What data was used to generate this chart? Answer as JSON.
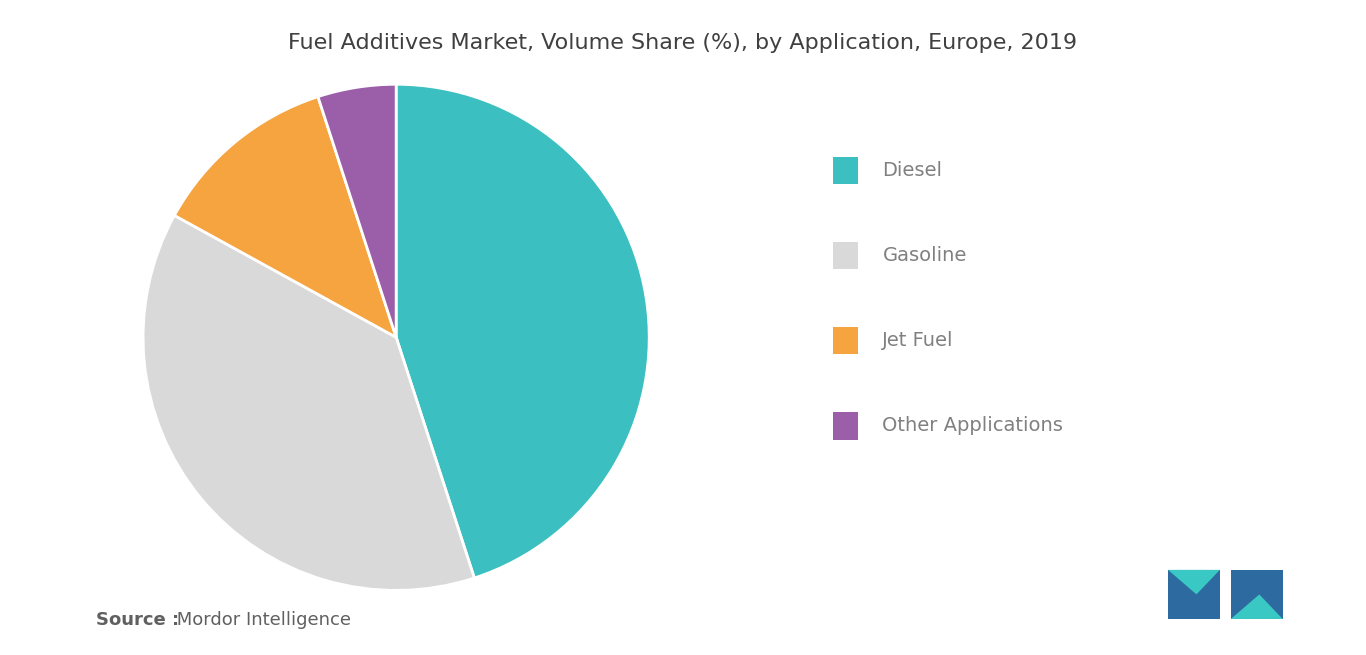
{
  "title": "Fuel Additives Market, Volume Share (%), by Application, Europe, 2019",
  "labels": [
    "Diesel",
    "Gasoline",
    "Jet Fuel",
    "Other Applications"
  ],
  "values": [
    45,
    38,
    12,
    5
  ],
  "colors": [
    "#3bbfc0",
    "#d9d9d9",
    "#f5a440",
    "#9b5ea8"
  ],
  "legend_labels": [
    "Diesel",
    "Gasoline",
    "Jet Fuel",
    "Other Applications"
  ],
  "source_bold": "Source :",
  "source_normal": " Mordor Intelligence",
  "title_fontsize": 16,
  "legend_fontsize": 14,
  "source_fontsize": 13,
  "background_color": "#ffffff",
  "start_angle": 90
}
